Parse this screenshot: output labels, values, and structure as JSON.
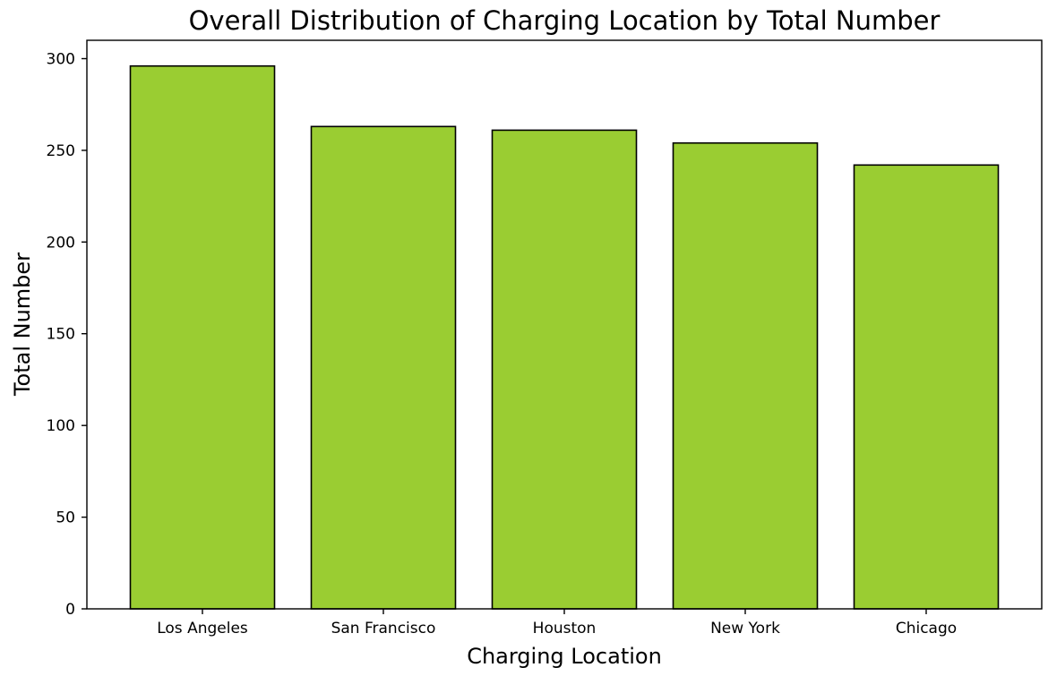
{
  "chart_data": {
    "type": "bar",
    "title": "Overall Distribution of Charging Location by Total Number",
    "xlabel": "Charging Location",
    "ylabel": "Total Number",
    "categories": [
      "Los Angeles",
      "San Francisco",
      "Houston",
      "New York",
      "Chicago"
    ],
    "values": [
      296,
      263,
      261,
      254,
      242
    ],
    "ylim": [
      0,
      310
    ],
    "yticks": [
      0,
      50,
      100,
      150,
      200,
      250,
      300
    ],
    "grid": false,
    "colors": {
      "bar_fill": "#9ACD32",
      "bar_edge": "#000000"
    }
  }
}
